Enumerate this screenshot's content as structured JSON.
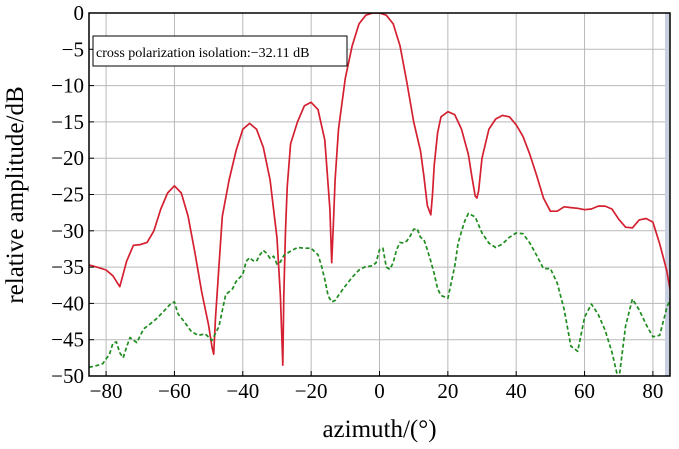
{
  "chart_data": {
    "type": "line",
    "xlabel": "azimuth/(°)",
    "ylabel": "relative amplitude/dB",
    "xlim": [
      -85,
      85
    ],
    "ylim": [
      -50,
      0
    ],
    "grid": true,
    "xticks": [
      -80,
      -60,
      -40,
      -20,
      0,
      20,
      40,
      60,
      80
    ],
    "yticks": [
      0,
      -5,
      -10,
      -15,
      -20,
      -25,
      -30,
      -35,
      -40,
      -45,
      -50
    ],
    "xtick_labels": [
      "−80",
      "−60",
      "−40",
      "−20",
      "0",
      "20",
      "40",
      "60",
      "80"
    ],
    "ytick_labels": [
      "0",
      "−5",
      "−10",
      "−15",
      "−20",
      "−25",
      "−30",
      "−35",
      "−40",
      "−45",
      "−50"
    ],
    "annotation": "cross polarization isolation:−32.11 dB",
    "colors": {
      "co_polar": "#d42030",
      "cross_polar": "#1e8c1e",
      "right_edge": "#c8cfe0"
    },
    "series": [
      {
        "style": "solid",
        "x": [
          -85,
          -82,
          -80,
          -78,
          -76,
          -74,
          -72,
          -70,
          -68,
          -66,
          -64,
          -62,
          -60,
          -58,
          -56,
          -54,
          -52,
          -50,
          -49,
          -48.5,
          -48,
          -47,
          -46,
          -44,
          -42,
          -40,
          -38,
          -36,
          -34,
          -32,
          -30,
          -29,
          -28.3,
          -28,
          -27.5,
          -27,
          -26,
          -24,
          -22,
          -20,
          -18,
          -16,
          -14.5,
          -14,
          -13.5,
          -13,
          -12,
          -10,
          -8,
          -6,
          -4,
          -2,
          0,
          2,
          4,
          6,
          8,
          10,
          12,
          13,
          14,
          15,
          15.5,
          16,
          17,
          18,
          20,
          22,
          24,
          26,
          27,
          28,
          28.5,
          29,
          30,
          32,
          34,
          36,
          38,
          40,
          42,
          44,
          46,
          48,
          50,
          52,
          54,
          56,
          58,
          60,
          62,
          64,
          66,
          68,
          70,
          72,
          74,
          76,
          78,
          80,
          82,
          84,
          85
        ],
        "y": [
          -34.7,
          -35.1,
          -35.4,
          -36.2,
          -37.7,
          -34.2,
          -32,
          -31.9,
          -31.6,
          -30,
          -27,
          -24.8,
          -23.8,
          -24.8,
          -28,
          -33,
          -38.5,
          -43,
          -46,
          -47,
          -42,
          -35,
          -28,
          -23,
          -19,
          -16,
          -15.2,
          -16,
          -18.5,
          -23,
          -31,
          -39,
          -48.5,
          -39,
          -30,
          -24,
          -18,
          -15,
          -12.8,
          -12.3,
          -13.3,
          -17.5,
          -27,
          -34.4,
          -29,
          -23,
          -16,
          -9,
          -4.5,
          -1.5,
          -0.3,
          0,
          0,
          -0.3,
          -1.5,
          -4.5,
          -9.5,
          -15,
          -19,
          -22.5,
          -26.5,
          -27.8,
          -25,
          -21,
          -16.5,
          -14.3,
          -13.6,
          -14,
          -16,
          -19.5,
          -22.5,
          -25.2,
          -25.5,
          -24.5,
          -20,
          -16,
          -14.6,
          -14.1,
          -14.3,
          -15.4,
          -17,
          -19.5,
          -22.4,
          -25.5,
          -27.3,
          -27.3,
          -26.7,
          -26.8,
          -26.9,
          -27.1,
          -27,
          -26.6,
          -26.6,
          -27,
          -28.4,
          -29.5,
          -29.6,
          -28.5,
          -28.3,
          -28.8,
          -31.8,
          -35.4,
          -38
        ]
      },
      {
        "style": "dashed",
        "x": [
          -85,
          -83,
          -81,
          -79,
          -78,
          -77,
          -76,
          -75,
          -74,
          -73,
          -71,
          -69,
          -67,
          -65,
          -63,
          -61,
          -60,
          -59,
          -57,
          -55,
          -53,
          -51,
          -49,
          -47,
          -45,
          -43,
          -42,
          -41,
          -40,
          -39,
          -38,
          -37,
          -36,
          -35,
          -34,
          -33,
          -32,
          -31,
          -30,
          -29,
          -28,
          -26,
          -24,
          -22,
          -20,
          -18,
          -17,
          -16,
          -15,
          -14,
          -13,
          -12,
          -10,
          -8,
          -6,
          -4,
          -3,
          -2,
          -1,
          0,
          1,
          2,
          3,
          4,
          5,
          6,
          7,
          8,
          9,
          10,
          11,
          12,
          13,
          14,
          15,
          16,
          17,
          18,
          20,
          22,
          23,
          24,
          25,
          26,
          28,
          30,
          32,
          34,
          36,
          38,
          40,
          42,
          44,
          46,
          48,
          50,
          52,
          54,
          56,
          58,
          60,
          62,
          64,
          66,
          68,
          70,
          72,
          74,
          76,
          78,
          80,
          82,
          84,
          85
        ],
        "y": [
          -48.8,
          -48.6,
          -48.3,
          -47,
          -45.5,
          -45.3,
          -46.8,
          -47.5,
          -46,
          -44.7,
          -45.4,
          -43.5,
          -42.8,
          -42,
          -41,
          -40,
          -39.8,
          -41.4,
          -42.6,
          -43.9,
          -44.4,
          -44.2,
          -45.1,
          -43.2,
          -38.8,
          -38,
          -37,
          -36.5,
          -36,
          -34.2,
          -33.7,
          -34.1,
          -34.2,
          -33.3,
          -32.7,
          -33.1,
          -33.8,
          -33.5,
          -34.6,
          -34.3,
          -33.4,
          -32.8,
          -32.3,
          -32.4,
          -32.4,
          -33.3,
          -34.8,
          -36.7,
          -39,
          -39.8,
          -39.6,
          -38.9,
          -37.6,
          -36.4,
          -35.4,
          -34.9,
          -34.9,
          -34.8,
          -34.4,
          -32.6,
          -32.4,
          -35,
          -35.3,
          -34.4,
          -32.6,
          -31.6,
          -31.7,
          -31.4,
          -30.7,
          -29.8,
          -29.7,
          -30.9,
          -31.2,
          -32.6,
          -34.2,
          -35.9,
          -38,
          -38.9,
          -39.3,
          -34.9,
          -31.7,
          -30.1,
          -28.6,
          -27.6,
          -28.1,
          -30.3,
          -31.7,
          -32.3,
          -31.8,
          -30.9,
          -30.3,
          -30.4,
          -31.7,
          -33.4,
          -35.2,
          -35.2,
          -37.2,
          -40.8,
          -45.9,
          -46.6,
          -41.9,
          -40.1,
          -41.5,
          -43.7,
          -46.7,
          -50.7,
          -43.1,
          -39.4,
          -40.9,
          -42.9,
          -44.6,
          -44.4,
          -40.7,
          -39.4
        ]
      }
    ]
  }
}
